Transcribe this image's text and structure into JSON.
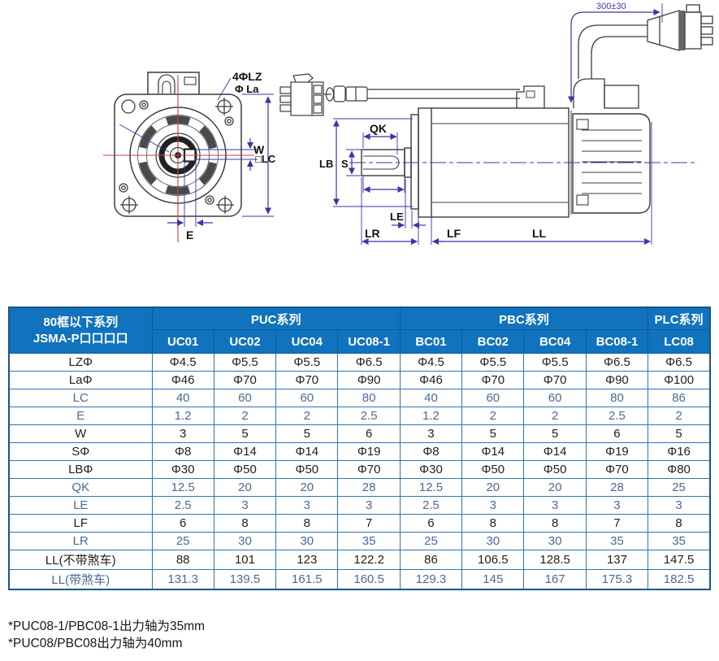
{
  "diagram": {
    "front_view": {
      "labels": {
        "mount_holes": "4ΦLZ",
        "pilot_dia": "Φ La",
        "keyway_width": "W",
        "frame_size": "□LC",
        "keyway_offset": "E"
      }
    },
    "side_view": {
      "labels": {
        "key_length": "QK",
        "pilot": "LB",
        "shaft_dia": "S",
        "le": "LE",
        "lr": "LR",
        "lf": "LF",
        "ll": "LL",
        "cable_length": "300±30"
      }
    },
    "colors": {
      "object_line": "#3c3c3c",
      "dimension_line": "#3a35a8",
      "centerline_red": "#c84040"
    }
  },
  "table": {
    "header": {
      "row_label_title": "80框以下系列",
      "row_label_subtitle": "JSMA-P口口口口",
      "groups": [
        {
          "label": "PUC系列",
          "span": 4
        },
        {
          "label": "PBC系列",
          "span": 4
        },
        {
          "label": "PLC系列",
          "span": 1
        }
      ],
      "models": [
        "UC01",
        "UC02",
        "UC04",
        "UC08-1",
        "BC01",
        "BC02",
        "BC04",
        "BC08-1",
        "LC08"
      ]
    },
    "rows": [
      {
        "label": "LZΦ",
        "muted": false,
        "values": [
          "Φ4.5",
          "Φ5.5",
          "Φ5.5",
          "Φ6.5",
          "Φ4.5",
          "Φ5.5",
          "Φ5.5",
          "Φ6.5",
          "Φ6.5"
        ]
      },
      {
        "label": "LaΦ",
        "muted": false,
        "values": [
          "Φ46",
          "Φ70",
          "Φ70",
          "Φ90",
          "Φ46",
          "Φ70",
          "Φ70",
          "Φ90",
          "Φ100"
        ]
      },
      {
        "label": "LC",
        "muted": true,
        "values": [
          "40",
          "60",
          "60",
          "80",
          "40",
          "60",
          "60",
          "80",
          "86"
        ]
      },
      {
        "label": "E",
        "muted": true,
        "values": [
          "1.2",
          "2",
          "2",
          "2.5",
          "1.2",
          "2",
          "2",
          "2.5",
          "2"
        ]
      },
      {
        "label": "W",
        "muted": false,
        "values": [
          "3",
          "5",
          "5",
          "6",
          "3",
          "5",
          "5",
          "6",
          "5"
        ]
      },
      {
        "label": "SΦ",
        "muted": false,
        "values": [
          "Φ8",
          "Φ14",
          "Φ14",
          "Φ19",
          "Φ8",
          "Φ14",
          "Φ14",
          "Φ19",
          "Φ16"
        ]
      },
      {
        "label": "LBΦ",
        "muted": false,
        "values": [
          "Φ30",
          "Φ50",
          "Φ50",
          "Φ70",
          "Φ30",
          "Φ50",
          "Φ50",
          "Φ70",
          "Φ80"
        ]
      },
      {
        "label": "QK",
        "muted": true,
        "values": [
          "12.5",
          "20",
          "20",
          "28",
          "12.5",
          "20",
          "20",
          "28",
          "25"
        ]
      },
      {
        "label": "LE",
        "muted": true,
        "values": [
          "2.5",
          "3",
          "3",
          "3",
          "2.5",
          "3",
          "3",
          "3",
          "3"
        ]
      },
      {
        "label": "LF",
        "muted": false,
        "values": [
          "6",
          "8",
          "8",
          "7",
          "6",
          "8",
          "8",
          "7",
          "8"
        ]
      },
      {
        "label": "LR",
        "muted": true,
        "values": [
          "25",
          "30",
          "30",
          "35",
          "25",
          "30",
          "30",
          "35",
          "35"
        ]
      },
      {
        "label": "LL(不带煞车)",
        "muted": false,
        "values": [
          "88",
          "101",
          "123",
          "122.2",
          "86",
          "106.5",
          "128.5",
          "137",
          "147.5"
        ]
      },
      {
        "label": "LL(带煞车)",
        "muted": true,
        "values": [
          "131.3",
          "139.5",
          "161.5",
          "160.5",
          "129.3",
          "145",
          "167",
          "175.3",
          "182.5"
        ]
      }
    ],
    "colors": {
      "header_bg": "#1173bd",
      "header_text": "#ffffff",
      "border": "#2e74b5",
      "outer_border": "#17568c",
      "text": "#1f1f1f",
      "muted_text": "#4a6a95"
    }
  },
  "notes": [
    "*PUC08-1/PBC08-1出力轴为35mm",
    "*PUC08/PBC08出力轴为40mm"
  ]
}
